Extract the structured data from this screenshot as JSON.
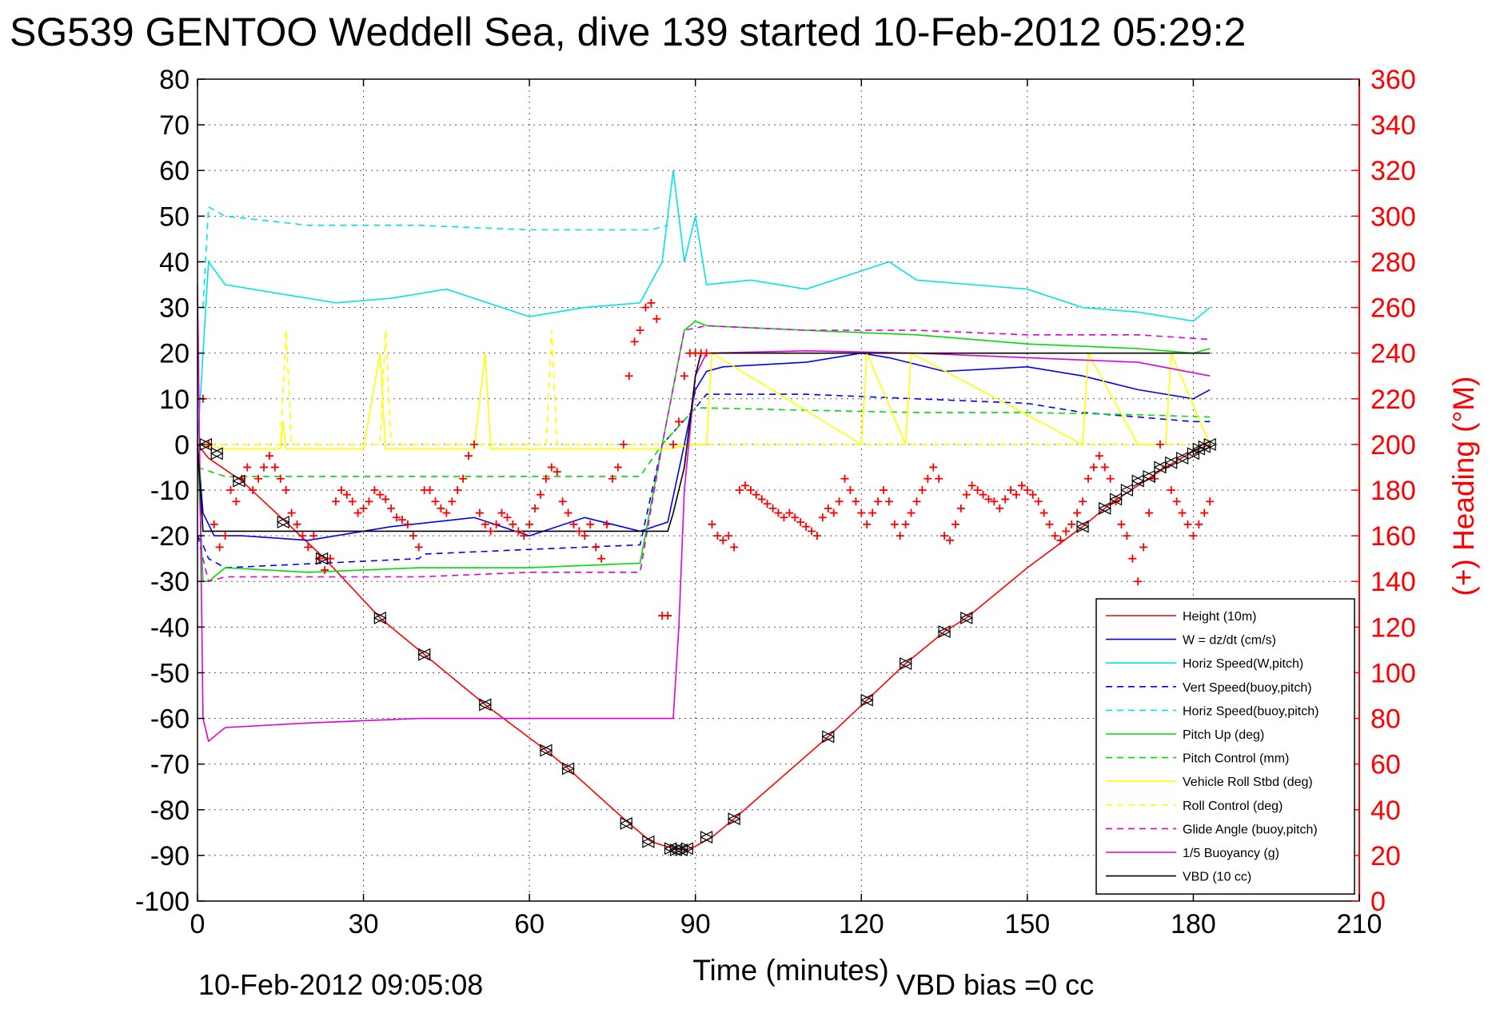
{
  "chart_data": {
    "type": "line",
    "title": "SG539 GENTOO Weddell Sea, dive 139 started 10-Feb-2012 05:29:2",
    "xlabel": "Time (minutes)",
    "ylabel": "",
    "ylabel_right": "(+) Heading (°M)",
    "footer_left": "10-Feb-2012 09:05:08",
    "footer_right": "VBD bias =0 cc",
    "xlim": [
      0,
      210
    ],
    "ylim": [
      -100,
      80
    ],
    "ylim_right": [
      0,
      360
    ],
    "x_ticks": [
      "0",
      "30",
      "60",
      "90",
      "120",
      "150",
      "180",
      "210"
    ],
    "y_ticks": [
      "80",
      "70",
      "60",
      "50",
      "40",
      "30",
      "20",
      "10",
      "0",
      "-10",
      "-20",
      "-30",
      "-40",
      "-50",
      "-60",
      "-70",
      "-80",
      "-90",
      "-100"
    ],
    "y_right_ticks": [
      "360",
      "340",
      "320",
      "300",
      "280",
      "260",
      "240",
      "220",
      "200",
      "180",
      "160",
      "140",
      "120",
      "100",
      "80",
      "60",
      "40",
      "20",
      "0"
    ],
    "grid": true,
    "legend_position": "bottom-right",
    "series": [
      {
        "name": "Height (10m)",
        "color": "#ff0000",
        "style": "solid",
        "x": [
          0,
          2,
          8,
          16,
          23,
          33,
          41,
          52,
          63,
          67,
          78,
          82,
          86,
          88,
          90,
          93,
          97,
          114,
          121,
          128,
          135,
          139,
          150,
          160,
          165,
          170,
          175,
          180,
          183
        ],
        "y": [
          0,
          -3,
          -8,
          -17,
          -25,
          -38,
          -46,
          -57,
          -67,
          -71,
          -83,
          -87,
          -88.5,
          -88.8,
          -88,
          -86,
          -82,
          -64,
          -56,
          -48,
          -41,
          -38,
          -27,
          -18,
          -13,
          -9,
          -5,
          -1.5,
          0
        ]
      },
      {
        "name": "W = dz/dt (cm/s)",
        "color": "#0000ff",
        "style": "solid",
        "x": [
          0,
          1,
          3,
          8,
          20,
          35,
          50,
          60,
          70,
          80,
          85,
          88,
          90,
          92,
          95,
          110,
          120,
          125,
          135,
          150,
          160,
          170,
          180,
          183
        ],
        "y": [
          0,
          -15,
          -20,
          -20,
          -21,
          -18,
          -16,
          -20,
          -16,
          -19,
          -17,
          0,
          12,
          16,
          17,
          18,
          20,
          19,
          16,
          17,
          15,
          12,
          10,
          12
        ]
      },
      {
        "name": "Horiz Speed(W,pitch)",
        "color": "#00e5e5",
        "style": "solid",
        "x": [
          0,
          2,
          5,
          15,
          25,
          35,
          45,
          55,
          60,
          70,
          80,
          84,
          86,
          88,
          90,
          92,
          100,
          110,
          120,
          125,
          130,
          140,
          150,
          160,
          170,
          180,
          183
        ],
        "y": [
          0,
          40,
          35,
          33,
          31,
          32,
          34,
          30,
          28,
          30,
          31,
          40,
          60,
          40,
          50,
          35,
          36,
          34,
          38,
          40,
          36,
          35,
          34,
          30,
          29,
          27,
          30
        ]
      },
      {
        "name": "Vert Speed(buoy,pitch)",
        "color": "#0000ff",
        "style": "dashed",
        "x": [
          0,
          1,
          2,
          5,
          40,
          41,
          60,
          80,
          84,
          90,
          92,
          110,
          130,
          150,
          160,
          170,
          180,
          183
        ],
        "y": [
          -20,
          -22,
          -25,
          -27,
          -25,
          -24,
          -23,
          -22,
          0,
          8,
          11,
          11,
          10,
          9,
          7,
          6,
          5,
          5
        ]
      },
      {
        "name": "Horiz Speed(buoy,pitch)",
        "color": "#00e5e5",
        "style": "dashed",
        "x": [
          1,
          2,
          5,
          20,
          40,
          60,
          80,
          82,
          85
        ],
        "y": [
          30,
          52,
          50,
          48,
          48,
          47,
          47,
          47,
          48
        ]
      },
      {
        "name": "Pitch Up (deg)",
        "color": "#00dd00",
        "style": "solid",
        "x": [
          0,
          1,
          2,
          5,
          20,
          40,
          60,
          80,
          84,
          88,
          90,
          92,
          110,
          130,
          150,
          170,
          180,
          183
        ],
        "y": [
          0,
          -30,
          -30,
          -27,
          -28,
          -27,
          -27,
          -26,
          0,
          25,
          27,
          26,
          25,
          24,
          22,
          21,
          20,
          21
        ]
      },
      {
        "name": "Pitch Control (mm)",
        "color": "#00dd00",
        "style": "dashed",
        "x": [
          0,
          5,
          20,
          40,
          60,
          80,
          84,
          90,
          92,
          110,
          130,
          150,
          170,
          183
        ],
        "y": [
          -5,
          -7,
          -7,
          -7,
          -7,
          -7,
          0,
          8,
          8,
          7.5,
          7,
          7,
          6.5,
          6
        ]
      },
      {
        "name": "Vehicle Roll Stbd (deg)",
        "color": "#ffff00",
        "style": "solid",
        "x": [
          0,
          5,
          15,
          15.5,
          16,
          30,
          33,
          34,
          50,
          52,
          53,
          70,
          85,
          90,
          92,
          93,
          120,
          121,
          128,
          129,
          160,
          161,
          170,
          175,
          176,
          183
        ],
        "y": [
          0,
          -1,
          -1,
          5,
          -1,
          -1,
          20,
          -1,
          -1,
          20,
          -1,
          -1,
          -1,
          0,
          0,
          20,
          0,
          20,
          0,
          20,
          0,
          20,
          0,
          0,
          20,
          0
        ]
      },
      {
        "name": "Roll Control (deg)",
        "color": "#ffff00",
        "style": "dashed",
        "x": [
          0,
          5,
          15,
          16,
          17,
          33,
          34,
          35,
          63,
          64,
          65,
          88,
          90,
          92,
          120,
          130,
          150,
          170,
          183
        ],
        "y": [
          0,
          0,
          0,
          25,
          0,
          0,
          25,
          0,
          0,
          25,
          0,
          0,
          0,
          0,
          0,
          0,
          0,
          0,
          0
        ]
      },
      {
        "name": "Glide Angle (buoy,pitch)",
        "color": "#dd00dd",
        "style": "dashed",
        "x": [
          0,
          2,
          5,
          20,
          40,
          60,
          80,
          84,
          88,
          92,
          110,
          130,
          150,
          170,
          183
        ],
        "y": [
          -20,
          -30,
          -29,
          -29,
          -29,
          -28,
          -28,
          0,
          25,
          26,
          25,
          25,
          24,
          24,
          23
        ]
      },
      {
        "name": "1/5 Buoyancy (g)",
        "color": "#dd00dd",
        "style": "solid",
        "x": [
          0,
          1,
          2,
          5,
          20,
          40,
          60,
          86,
          87,
          88,
          90,
          92,
          110,
          130,
          150,
          170,
          183
        ],
        "y": [
          35,
          -60,
          -65,
          -62,
          -61,
          -60,
          -60,
          -60,
          -40,
          -10,
          15,
          20,
          20.5,
          20,
          19,
          18,
          15
        ]
      },
      {
        "name": "VBD (10 cc)",
        "color": "#000000",
        "style": "solid",
        "x": [
          0,
          1,
          2,
          3,
          85,
          86,
          88,
          90,
          91,
          183
        ],
        "y": [
          0,
          -19,
          -19,
          -19,
          -19,
          -15,
          -5,
          15,
          20,
          20
        ]
      }
    ],
    "heading_points": {
      "name": "Heading",
      "color": "#ff0000",
      "axis": "right",
      "x": [
        1,
        2,
        3,
        4,
        5,
        6,
        7,
        8,
        9,
        10,
        11,
        12,
        13,
        14,
        15,
        16,
        17,
        18,
        19,
        20,
        21,
        22,
        23,
        24,
        25,
        26,
        27,
        28,
        29,
        30,
        31,
        32,
        33,
        34,
        35,
        36,
        37,
        38,
        39,
        40,
        41,
        42,
        43,
        44,
        45,
        46,
        47,
        48,
        49,
        50,
        51,
        52,
        53,
        54,
        55,
        56,
        57,
        58,
        59,
        60,
        61,
        62,
        63,
        64,
        65,
        66,
        67,
        68,
        69,
        70,
        71,
        72,
        73,
        74,
        75,
        76,
        77,
        78,
        79,
        80,
        81,
        82,
        83,
        84,
        85,
        86,
        87,
        88,
        89,
        90,
        91,
        92,
        93,
        94,
        95,
        96,
        97,
        98,
        99,
        100,
        101,
        102,
        103,
        104,
        105,
        106,
        107,
        108,
        109,
        110,
        111,
        112,
        113,
        114,
        115,
        116,
        117,
        118,
        119,
        120,
        121,
        122,
        123,
        124,
        125,
        126,
        127,
        128,
        129,
        130,
        131,
        132,
        133,
        134,
        135,
        136,
        137,
        138,
        139,
        140,
        141,
        142,
        143,
        144,
        145,
        146,
        147,
        148,
        149,
        150,
        151,
        152,
        153,
        154,
        155,
        156,
        157,
        158,
        159,
        160,
        161,
        162,
        163,
        164,
        165,
        166,
        167,
        168,
        169,
        170,
        171,
        172,
        173,
        174,
        175,
        176,
        177,
        178,
        179,
        180,
        181,
        182,
        183
      ],
      "y": [
        220,
        200,
        165,
        155,
        160,
        180,
        175,
        185,
        190,
        180,
        185,
        190,
        195,
        190,
        185,
        180,
        170,
        165,
        160,
        155,
        160,
        150,
        145,
        150,
        175,
        180,
        178,
        175,
        170,
        172,
        175,
        180,
        178,
        176,
        172,
        168,
        167,
        165,
        160,
        155,
        180,
        180,
        175,
        172,
        170,
        175,
        180,
        185,
        195,
        200,
        170,
        165,
        162,
        165,
        170,
        168,
        165,
        162,
        160,
        165,
        172,
        178,
        185,
        190,
        188,
        175,
        170,
        165,
        162,
        160,
        165,
        155,
        150,
        165,
        185,
        190,
        200,
        230,
        245,
        250,
        260,
        262,
        255,
        125,
        125,
        200,
        210,
        230,
        240,
        240,
        240,
        240,
        165,
        160,
        158,
        160,
        155,
        180,
        182,
        180,
        178,
        176,
        174,
        172,
        170,
        168,
        170,
        168,
        166,
        164,
        162,
        160,
        168,
        172,
        170,
        175,
        185,
        180,
        175,
        170,
        165,
        170,
        175,
        180,
        175,
        165,
        160,
        165,
        170,
        175,
        180,
        185,
        190,
        185,
        160,
        158,
        165,
        172,
        178,
        182,
        180,
        178,
        176,
        175,
        172,
        176,
        180,
        178,
        182,
        180,
        178,
        175,
        170,
        165,
        160,
        158,
        162,
        165,
        170,
        175,
        185,
        190,
        195,
        190,
        185,
        175,
        165,
        160,
        150,
        140,
        155,
        170,
        185,
        200,
        190,
        180,
        175,
        170,
        165,
        160,
        165,
        170,
        175
      ]
    },
    "dive_markers": {
      "name": "markers",
      "color": "#000000",
      "x": [
        1.5,
        3.5,
        7.5,
        15.5,
        22.5,
        33,
        41,
        52,
        63,
        67,
        77.5,
        81.5,
        85.5,
        86.5,
        87.5,
        88.5,
        92,
        97,
        114,
        121,
        128,
        135,
        139,
        160,
        164,
        166,
        168,
        170,
        172,
        174,
        176,
        178,
        180,
        181,
        182,
        183
      ],
      "y": [
        0,
        -2,
        -8,
        -17,
        -25,
        -38,
        -46,
        -57,
        -67,
        -71,
        -83,
        -87,
        -88.5,
        -88.8,
        -88.8,
        -88.5,
        -86,
        -82,
        -64,
        -56,
        -48,
        -41,
        -38,
        -18,
        -14,
        -12,
        -10,
        -8,
        -7,
        -5,
        -4,
        -3,
        -2,
        -1,
        -0.5,
        0
      ]
    }
  }
}
